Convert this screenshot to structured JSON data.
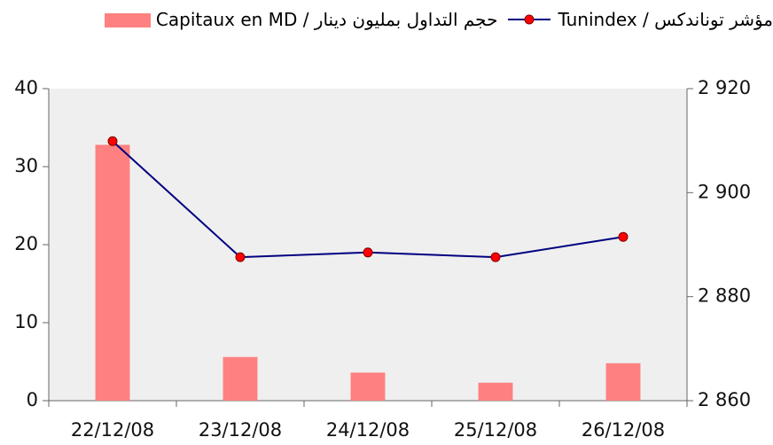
{
  "chart_data": {
    "type": "bar-line",
    "categories": [
      "22/12/08",
      "23/12/08",
      "24/12/08",
      "25/12/08",
      "26/12/08"
    ],
    "series": [
      {
        "name": "حجم التداول بمليون دينار / Capitaux en MD",
        "type": "bar",
        "color": "#ff8080",
        "values": [
          32.8,
          5.6,
          3.6,
          2.3,
          4.8
        ]
      },
      {
        "name": "مؤشر توناندكس / Tunindex",
        "type": "line",
        "color": "#000080",
        "marker_color": "#ff0000",
        "axis": "y2",
        "values": [
          2909.9,
          2887.6,
          2888.5,
          2887.6,
          2891.5
        ]
      }
    ],
    "ylim": [
      0,
      40
    ],
    "yticks": [
      0,
      10,
      20,
      30,
      40
    ],
    "y2lim": [
      2860,
      2920
    ],
    "y2ticks": [
      {
        "value": 2860,
        "label": "2 860"
      },
      {
        "value": 2880,
        "label": "2 880"
      },
      {
        "value": 2900,
        "label": "2 900"
      },
      {
        "value": 2920,
        "label": "2 920"
      }
    ],
    "grid": false
  }
}
